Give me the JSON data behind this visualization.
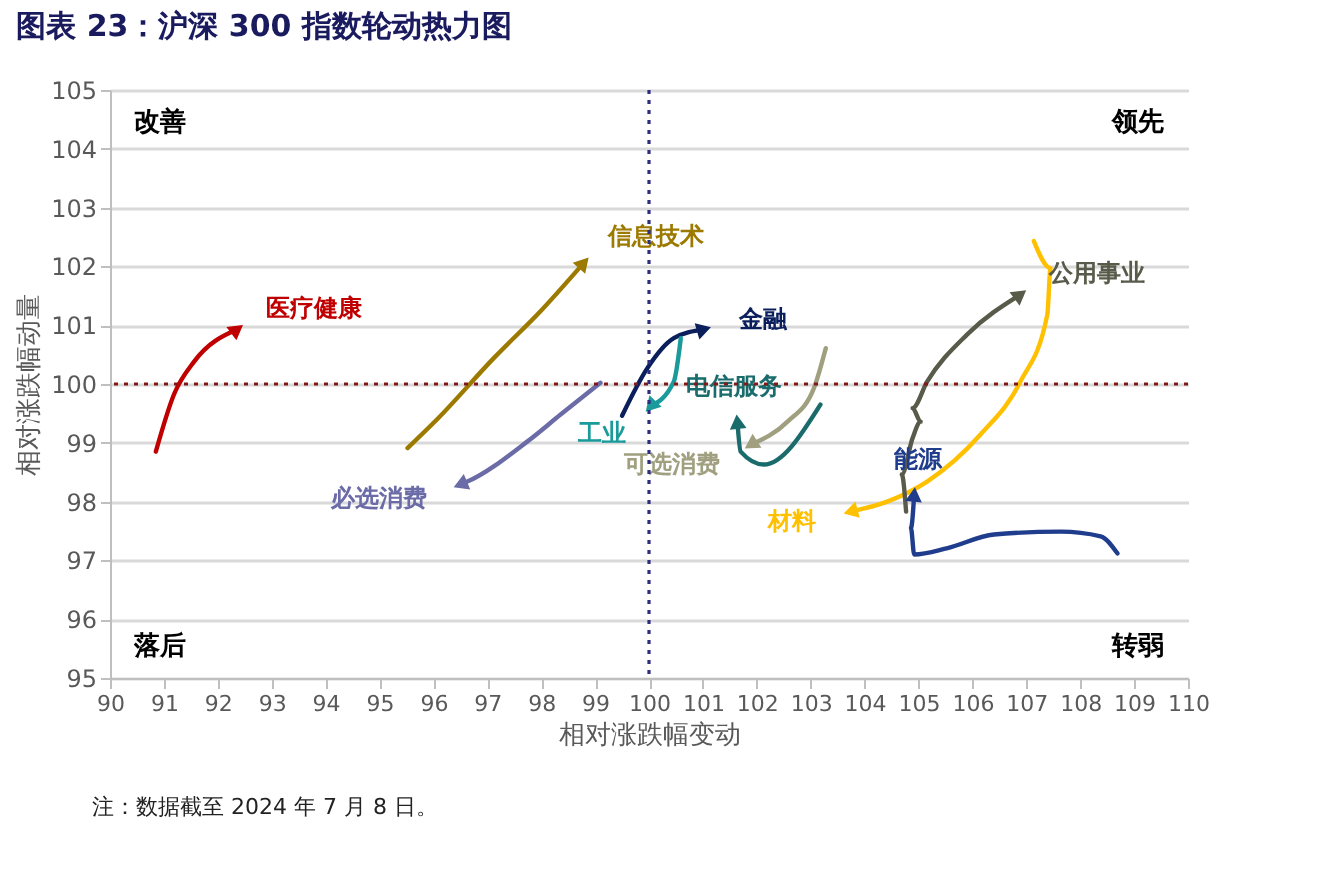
{
  "chart_data": {
    "type": "line",
    "title": "图表 23：沪深 300 指数轮动热力图",
    "xlabel": "相对涨跌幅变动",
    "ylabel": "相对涨跌幅动量",
    "xlim": [
      90,
      110
    ],
    "ylim": [
      95,
      105
    ],
    "xticks": [
      90,
      91,
      92,
      93,
      94,
      95,
      96,
      97,
      98,
      99,
      100,
      101,
      102,
      103,
      104,
      105,
      106,
      107,
      108,
      109,
      110
    ],
    "yticks": [
      95,
      96,
      97,
      98,
      99,
      100,
      101,
      102,
      103,
      104,
      105
    ],
    "grid": "y",
    "legend": false,
    "ref_lines": [
      {
        "axis": "x",
        "value": 100,
        "color": "#2e2e80",
        "line_style": "dotted"
      },
      {
        "axis": "y",
        "value": 100,
        "color": "#7f1a1a",
        "line_style": "dotted"
      }
    ],
    "annotations": [
      "改善",
      "领先",
      "落后",
      "转弱",
      "注：数据截至 2024 年 7 月 8 日。"
    ],
    "series": [
      {
        "name": "医疗健康",
        "color": "#c00000",
        "x": [
          90.85,
          91.19,
          91.56,
          92.36
        ],
        "values": [
          98.85,
          99.83,
          100.38,
          100.93
        ]
      },
      {
        "name": "信息技术",
        "color": "#9c7a00",
        "x": [
          95.52,
          96.07,
          97.12,
          98.0,
          98.79
        ],
        "values": [
          98.91,
          99.4,
          100.44,
          101.25,
          102.06
        ]
      },
      {
        "name": "必选消费",
        "color": "#6b6ba8",
        "x": [
          99.1,
          98.36,
          97.74,
          96.63,
          96.5
        ],
        "values": [
          100.02,
          99.48,
          99.02,
          98.34,
          98.29
        ]
      },
      {
        "name": "金融",
        "color": "#0a1f5c",
        "x": [
          99.5,
          99.97,
          100.46,
          101.02
        ],
        "values": [
          99.46,
          100.27,
          100.78,
          100.93
        ]
      },
      {
        "name": "工业",
        "color": "#1a9a9a",
        "x": [
          100.59,
          100.46,
          100.03
        ],
        "values": [
          100.78,
          100.04,
          99.62
        ]
      },
      {
        "name": "可选消费",
        "color": "#a0a080",
        "x": [
          103.28,
          103.06,
          102.57,
          101.89
        ],
        "values": [
          100.61,
          99.93,
          99.36,
          98.97
        ]
      },
      {
        "name": "电信服务",
        "color": "#1a6b6b",
        "x": [
          103.18,
          102.13,
          101.7,
          101.64
        ],
        "values": [
          99.65,
          98.63,
          98.85,
          99.36
        ]
      },
      {
        "name": "材料",
        "color": "#ffc000",
        "x": [
          107.14,
          107.45,
          107.39,
          106.89,
          106.15,
          105.16,
          104.42,
          103.74
        ],
        "values": [
          102.43,
          101.97,
          101.18,
          100.04,
          99.14,
          98.34,
          98.0,
          97.83
        ]
      },
      {
        "name": "公用事业",
        "color": "#595b4a",
        "x": [
          104.77,
          104.69,
          104.89,
          105.04,
          104.89,
          105.16,
          105.9,
          106.89
        ],
        "values": [
          97.83,
          98.46,
          99.08,
          99.36,
          99.59,
          100.04,
          100.84,
          101.52
        ]
      },
      {
        "name": "能源",
        "color": "#1f3d8c",
        "x": [
          108.69,
          108.38,
          107.64,
          106.4,
          105.54,
          104.92,
          104.86,
          104.92
        ],
        "values": [
          97.12,
          97.41,
          97.49,
          97.44,
          97.21,
          97.1,
          97.55,
          98.12
        ]
      }
    ]
  }
}
